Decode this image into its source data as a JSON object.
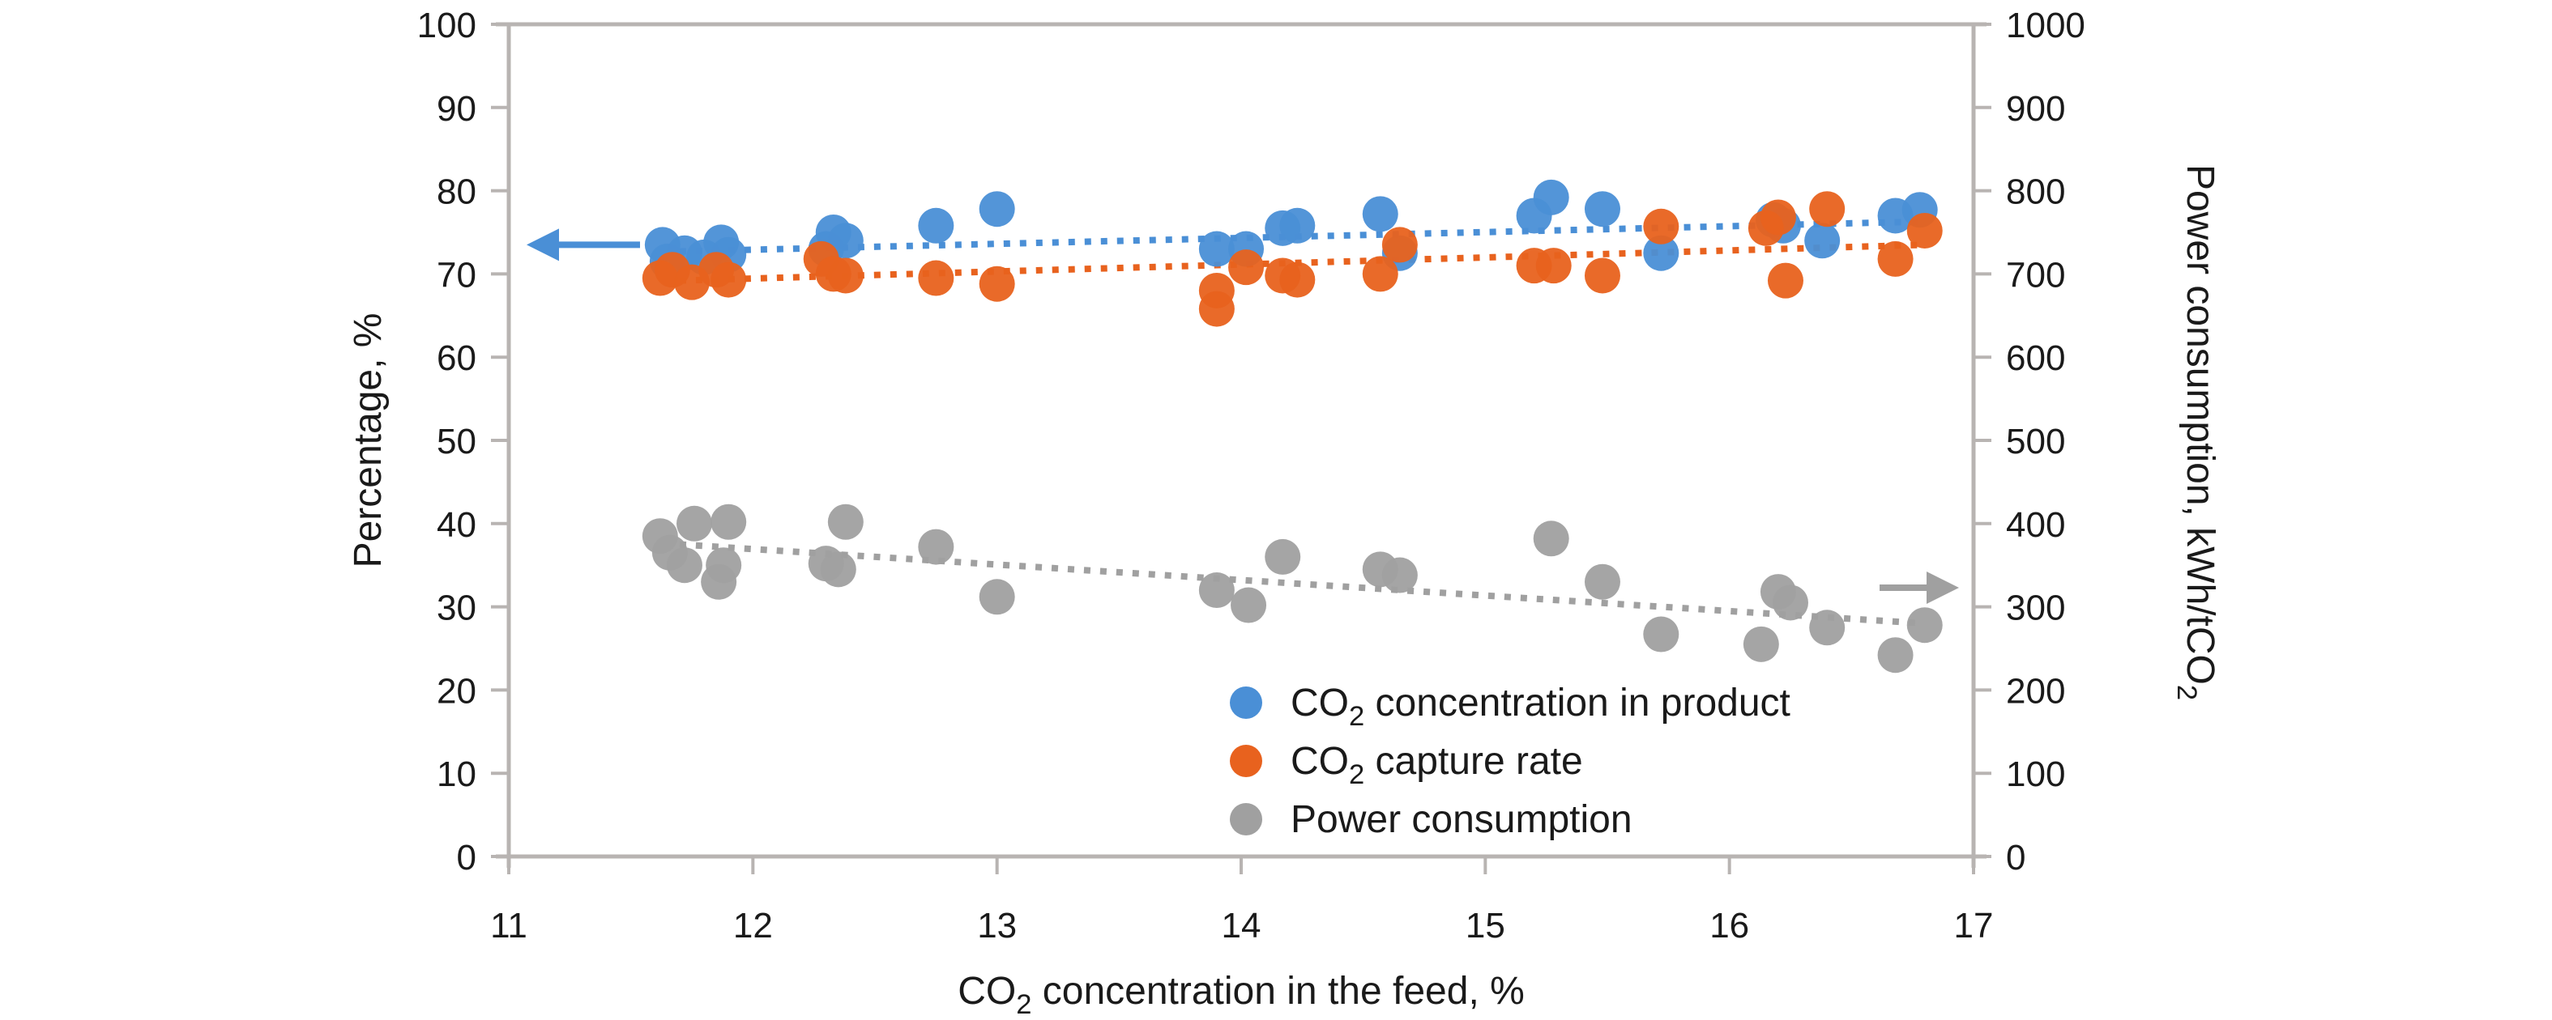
{
  "chart_data": {
    "type": "scatter",
    "title": "",
    "xlabel": "CO2 concentration in the feed, %",
    "xlabel_parts": {
      "pre": "CO",
      "sub": "2",
      "post": " concentration in the feed, %"
    },
    "ylabel_left": "Percentage, %",
    "ylabel_right": "Power consumption, kWh/tCO2",
    "ylabel_right_parts": {
      "pre": "Power consumption, kWh/tCO",
      "sub": "2"
    },
    "xlim": [
      11,
      17
    ],
    "ylim_left": [
      0,
      100
    ],
    "ylim_right": [
      0,
      1000
    ],
    "x_ticks": [
      "11",
      "12",
      "13",
      "14",
      "15",
      "16",
      "17"
    ],
    "y_ticks_left": [
      "0",
      "10",
      "20",
      "30",
      "40",
      "50",
      "60",
      "70",
      "80",
      "90",
      "100"
    ],
    "y_ticks_right": [
      "0",
      "100",
      "200",
      "300",
      "400",
      "500",
      "600",
      "700",
      "800",
      "900",
      "1000"
    ],
    "grid": false,
    "legend_position": "bottom-right",
    "series": [
      {
        "name": "CO2 concentration in product",
        "label_parts": {
          "pre": "CO",
          "sub": "2",
          "post": " concentration in product"
        },
        "axis": "left",
        "color": "#4a8fd6",
        "trend": [
          [
            11.7,
            72.7
          ],
          [
            16.8,
            76.3
          ]
        ],
        "points": [
          [
            11.63,
            73.5
          ],
          [
            11.65,
            71.5
          ],
          [
            11.72,
            72.5
          ],
          [
            11.8,
            72.0
          ],
          [
            11.87,
            73.8
          ],
          [
            11.9,
            72.3
          ],
          [
            12.3,
            73.0
          ],
          [
            12.33,
            75.0
          ],
          [
            12.38,
            74.0
          ],
          [
            12.75,
            75.8
          ],
          [
            13.0,
            77.8
          ],
          [
            13.9,
            73.0
          ],
          [
            14.02,
            73.0
          ],
          [
            14.17,
            75.5
          ],
          [
            14.23,
            75.8
          ],
          [
            14.57,
            77.2
          ],
          [
            14.65,
            72.5
          ],
          [
            15.2,
            77.0
          ],
          [
            15.27,
            79.2
          ],
          [
            15.48,
            77.8
          ],
          [
            15.72,
            72.5
          ],
          [
            16.18,
            76.5
          ],
          [
            16.22,
            75.8
          ],
          [
            16.38,
            74.0
          ],
          [
            16.68,
            77.0
          ],
          [
            16.78,
            77.7
          ]
        ]
      },
      {
        "name": "CO2 capture rate",
        "label_parts": {
          "pre": "CO",
          "sub": "2",
          "post": " capture rate"
        },
        "axis": "left",
        "color": "#e8621e",
        "trend": [
          [
            11.7,
            69.2
          ],
          [
            16.8,
            73.5
          ]
        ],
        "points": [
          [
            11.62,
            69.5
          ],
          [
            11.67,
            70.5
          ],
          [
            11.75,
            69.0
          ],
          [
            11.85,
            70.5
          ],
          [
            11.9,
            69.3
          ],
          [
            12.28,
            71.8
          ],
          [
            12.33,
            70.0
          ],
          [
            12.38,
            69.8
          ],
          [
            12.75,
            69.5
          ],
          [
            13.0,
            68.8
          ],
          [
            13.9,
            68.0
          ],
          [
            13.9,
            65.8
          ],
          [
            14.02,
            70.8
          ],
          [
            14.17,
            69.8
          ],
          [
            14.23,
            69.3
          ],
          [
            14.57,
            70.0
          ],
          [
            14.65,
            73.5
          ],
          [
            15.2,
            71.0
          ],
          [
            15.28,
            71.0
          ],
          [
            15.48,
            69.8
          ],
          [
            15.72,
            75.7
          ],
          [
            16.15,
            75.5
          ],
          [
            16.2,
            76.8
          ],
          [
            16.23,
            69.2
          ],
          [
            16.4,
            77.8
          ],
          [
            16.68,
            71.8
          ],
          [
            16.8,
            75.2
          ]
        ]
      },
      {
        "name": "Power consumption",
        "label_parts": {
          "pre": "Power consumption",
          "sub": "",
          "post": ""
        },
        "axis": "right",
        "color": "#a0a0a0",
        "trend": [
          [
            11.7,
            375
          ],
          [
            16.8,
            280
          ]
        ],
        "points": [
          [
            11.62,
            385
          ],
          [
            11.66,
            365
          ],
          [
            11.72,
            350
          ],
          [
            11.76,
            400
          ],
          [
            11.86,
            330
          ],
          [
            11.88,
            350
          ],
          [
            11.9,
            402
          ],
          [
            12.3,
            352
          ],
          [
            12.35,
            345
          ],
          [
            12.38,
            402
          ],
          [
            12.75,
            372
          ],
          [
            13.0,
            312
          ],
          [
            13.9,
            320
          ],
          [
            14.03,
            302
          ],
          [
            14.17,
            360
          ],
          [
            14.57,
            345
          ],
          [
            14.65,
            338
          ],
          [
            15.27,
            382
          ],
          [
            15.48,
            330
          ],
          [
            15.72,
            267
          ],
          [
            16.13,
            255
          ],
          [
            16.2,
            318
          ],
          [
            16.25,
            305
          ],
          [
            16.4,
            275
          ],
          [
            16.68,
            242
          ],
          [
            16.8,
            278
          ]
        ]
      }
    ],
    "annotations": [
      {
        "type": "arrow",
        "direction": "left",
        "series": "CO2 concentration in product",
        "meaning": "refers to left axis"
      },
      {
        "type": "arrow",
        "direction": "right",
        "series": "Power consumption",
        "meaning": "refers to right axis"
      }
    ],
    "colors": {
      "axis": "#b8b4b2",
      "text": "#1a1a1a"
    }
  }
}
